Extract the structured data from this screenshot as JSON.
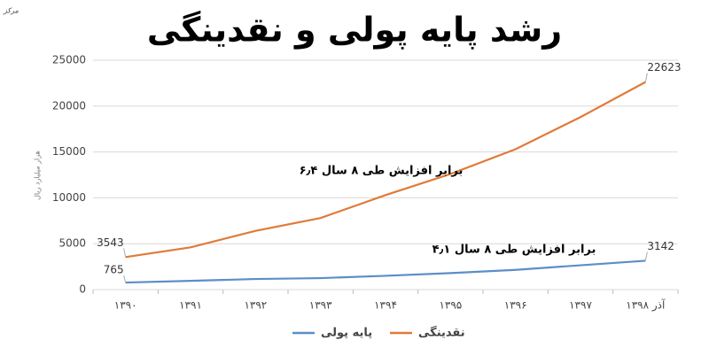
{
  "chart_data": {
    "type": "line",
    "title": "رشد پایه پولی و نقدینگی",
    "source": "مرکز",
    "y_label": "هزار میلیارد ریال",
    "categories": [
      "۱۳۹۰",
      "۱۳۹۱",
      "۱۳۹۲",
      "۱۳۹۳",
      "۱۳۹۴",
      "۱۳۹۵",
      "۱۳۹۶",
      "۱۳۹۷",
      "آذر ۱۳۹۸"
    ],
    "series": [
      {
        "name": "پایه پولی",
        "color": "#5b8ec9",
        "values": [
          765,
          950,
          1150,
          1250,
          1500,
          1800,
          2150,
          2650,
          3142
        ],
        "labeled_indices": [
          0,
          8
        ],
        "annotation": "۴٫۱ برابر افزایش طی ۸ سال"
      },
      {
        "name": "نقدینگی",
        "color": "#e07b39",
        "values": [
          3543,
          4600,
          6400,
          7800,
          10300,
          12600,
          15300,
          18800,
          22623
        ],
        "labeled_indices": [
          0,
          8
        ],
        "annotation": "۶٫۴ برابر افزایش طی ۸ سال"
      }
    ],
    "ylim": [
      0,
      25000
    ],
    "yticks": [
      0,
      5000,
      10000,
      15000,
      20000,
      25000
    ],
    "grid": true,
    "legend": "bottom"
  }
}
